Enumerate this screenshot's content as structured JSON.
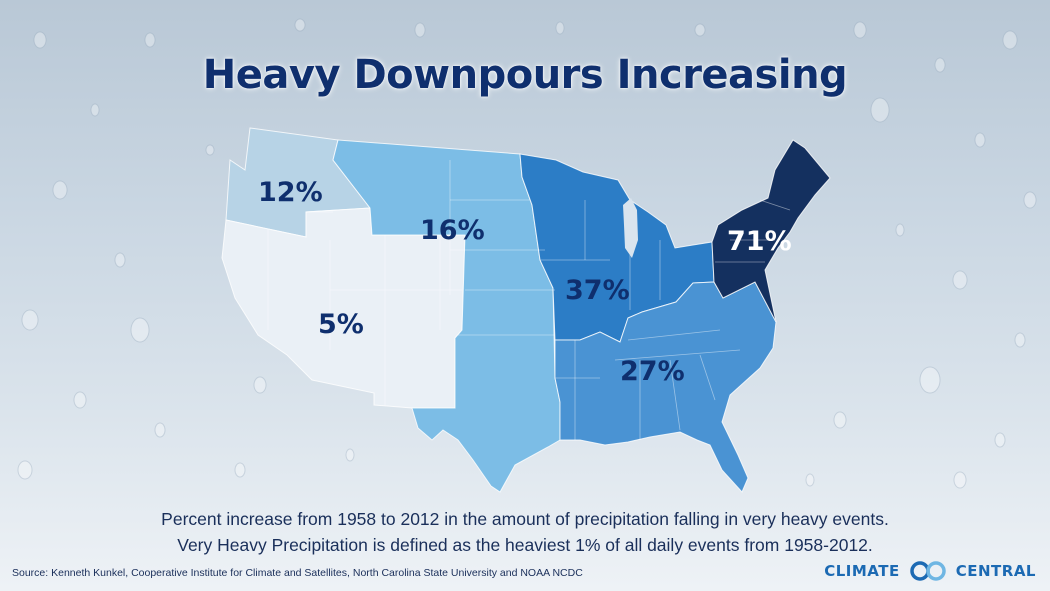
{
  "title": "Heavy Downpours Increasing",
  "regions": [
    {
      "id": "northwest",
      "label": "12%",
      "value": 12,
      "color": "#b7d3e6",
      "text_color": "#0f2f6e"
    },
    {
      "id": "southwest",
      "label": "5%",
      "value": 5,
      "color": "#eaf0f6",
      "text_color": "#0f2f6e"
    },
    {
      "id": "great-plains",
      "label": "16%",
      "value": 16,
      "color": "#7cbde6",
      "text_color": "#0f2f6e"
    },
    {
      "id": "midwest",
      "label": "37%",
      "value": 37,
      "color": "#2c7dc6",
      "text_color": "#0f2f6e"
    },
    {
      "id": "southeast",
      "label": "27%",
      "value": 27,
      "color": "#4a93d3",
      "text_color": "#0f2f6e"
    },
    {
      "id": "northeast",
      "label": "71%",
      "value": 71,
      "color": "#14305f",
      "text_color": "#ffffff"
    }
  ],
  "description_line1": "Percent increase from 1958 to 2012 in the amount of precipitation falling in very heavy events.",
  "description_line2": "Very Heavy Precipitation is defined as the heaviest 1% of all daily events from 1958-2012.",
  "source": "Source: Kenneth Kunkel, Cooperative Institute for Climate and Satellites, North Carolina State University and NOAA NCDC",
  "logo": {
    "left": "CLIMATE",
    "right": "CENTRAL",
    "color": "#1c6ab3"
  }
}
